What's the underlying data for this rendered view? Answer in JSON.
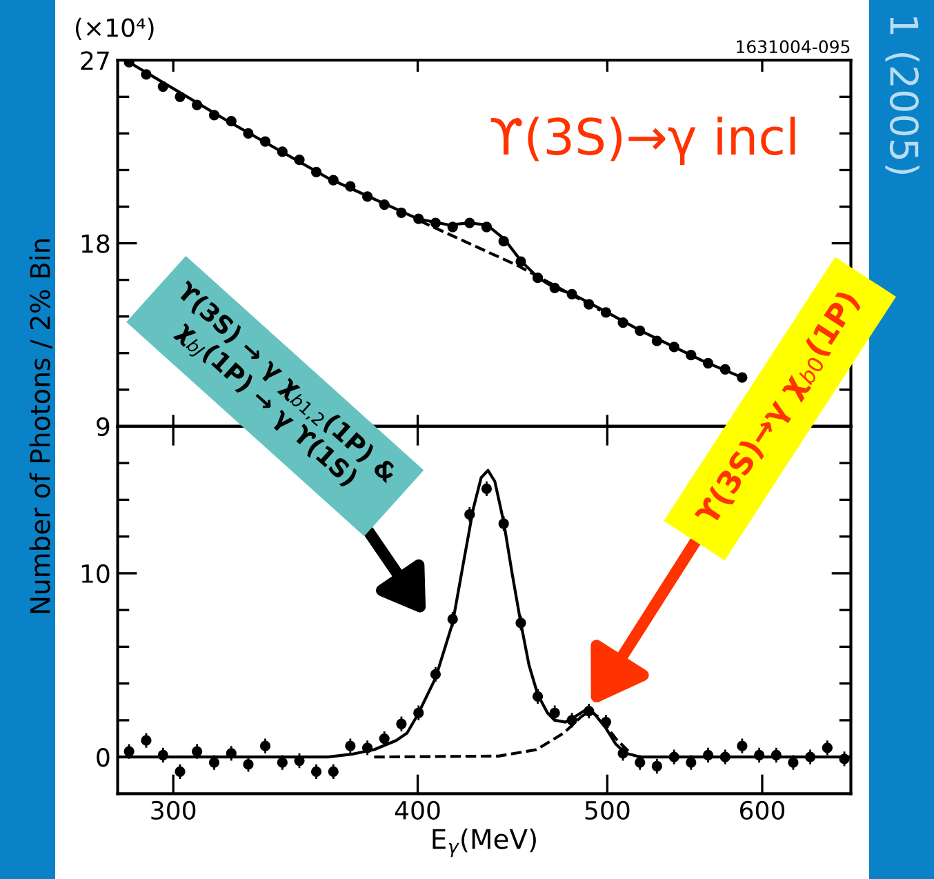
{
  "chart_data": [
    {
      "type": "scatter",
      "ylabel": "Number of Photons / 2% Bin",
      "annotations": [
        "(×10⁴)",
        "1631004-095",
        "ϒ(3S)→γ incl",
        "1 (2005)"
      ],
      "series": [
        {
          "color": "#000000",
          "x": [
            284.8,
            290.6,
            296.4,
            302.4,
            308.5,
            314.8,
            321.2,
            327.7,
            334.3,
            341.1,
            348.0,
            355.0,
            362.2,
            369.5,
            377.0,
            384.6,
            392.4,
            400.4,
            408.5,
            416.8,
            425.2,
            433.8,
            442.6,
            451.6,
            460.7,
            470.0,
            479.6,
            489.3,
            499.2,
            509.3,
            519.6,
            530.1,
            540.9,
            551.8,
            563.0,
            574.4,
            586.0
          ],
          "values": [
            26.9,
            26.3,
            25.7,
            25.2,
            24.8,
            24.3,
            24.0,
            23.4,
            23.0,
            22.5,
            22.1,
            21.5,
            21.1,
            20.8,
            20.3,
            19.9,
            19.5,
            19.2,
            19.0,
            18.8,
            19.0,
            18.8,
            18.1,
            17.1,
            16.3,
            15.8,
            15.5,
            15.0,
            14.6,
            14.1,
            13.7,
            13.2,
            12.9,
            12.5,
            12.1,
            11.8,
            11.4
          ]
        },
        {
          "type": "line",
          "color": "#000000",
          "line_style": "solid",
          "marker": "none",
          "x": [
            284.8,
            320,
            360,
            400,
            415,
            425,
            434,
            443,
            452,
            461,
            470,
            480,
            500,
            520,
            560,
            586
          ],
          "values": [
            26.9,
            24.0,
            21.2,
            19.2,
            18.9,
            19.0,
            18.9,
            18.2,
            17.1,
            16.3,
            15.8,
            15.5,
            14.6,
            13.7,
            12.2,
            11.4
          ]
        },
        {
          "type": "line",
          "color": "#000000",
          "line_style": "dashed",
          "marker": "none",
          "x": [
            401,
            450,
            496
          ],
          "values": [
            19.1,
            16.9,
            14.7
          ]
        }
      ],
      "log": "x",
      "xlim": [
        281,
        666
      ],
      "xticks": [
        {
          "value": 300,
          "label": null
        },
        {
          "value": 400,
          "label": null
        },
        {
          "value": 500,
          "label": null
        },
        {
          "value": 600,
          "label": null
        }
      ],
      "ylim": [
        9,
        27
      ],
      "yticks": [
        9,
        {
          "value": 10.8,
          "label": null
        },
        {
          "value": 12.6,
          "label": null
        },
        {
          "value": 14.4,
          "label": null
        },
        {
          "value": 16.2,
          "label": null
        },
        18,
        {
          "value": 19.8,
          "label": null
        },
        {
          "value": 21.6,
          "label": null
        },
        {
          "value": 23.4,
          "label": null
        },
        {
          "value": 25.2,
          "label": null
        },
        27
      ],
      "tick_labels": "y",
      "marker": "circle"
    },
    {
      "type": "scatter",
      "xlabel": "E$_{γ}$(MeV)",
      "annotations": [
        "ϒ(3S) → γ χ$_{b1,2}$(1P) &\nχ$_{bJ}$(1P) → γ ϒ(1S)",
        {
          "text": "ϒ(3S)→γ χ$_{b0}$(1P)",
          "x": 490.5,
          "y": 2.8
        }
      ],
      "x": [
        284.8,
        290.6,
        296.4,
        302.4,
        308.5,
        314.8,
        321.2,
        327.7,
        334.3,
        341.1,
        348.0,
        355.0,
        362.2,
        369.5,
        377.0,
        384.6,
        392.4,
        400.4,
        408.5,
        416.8,
        425.2,
        433.8,
        442.6,
        451.6,
        460.7,
        470.0,
        479.6,
        489.3,
        499.2,
        509.3,
        519.6,
        530.1,
        540.9,
        551.8,
        563.0,
        574.4,
        586.0,
        597.9,
        610.0,
        622.3,
        634.9,
        647.8,
        660.9
      ],
      "series": [
        {
          "color": "#000000",
          "values": [
            0.3,
            0.9,
            0.1,
            -0.8,
            0.3,
            -0.3,
            0.2,
            -0.4,
            0.6,
            -0.3,
            -0.2,
            -0.8,
            -0.8,
            0.6,
            0.5,
            1.0,
            1.8,
            2.4,
            4.5,
            7.5,
            13.2,
            14.6,
            12.7,
            7.3,
            3.3,
            2.4,
            2.0,
            2.5,
            1.9,
            0.2,
            -0.3,
            -0.5,
            0.0,
            -0.3,
            0.1,
            0.0,
            0.6,
            0.1,
            0.1,
            -0.3,
            0.0,
            0.5,
            -0.1
          ],
          "errors": [
            0.4,
            0.4,
            0.4,
            0.4,
            0.4,
            0.4,
            0.4,
            0.4,
            0.4,
            0.4,
            0.4,
            0.4,
            0.4,
            0.4,
            0.4,
            0.4,
            0.4,
            0.4,
            0.4,
            0.4,
            0.4,
            0.4,
            0.4,
            0.4,
            0.4,
            0.4,
            0.4,
            0.4,
            0.4,
            0.4,
            0.4,
            0.4,
            0.4,
            0.4,
            0.4,
            0.4,
            0.4,
            0.4,
            0.4,
            0.4,
            0.4,
            0.4,
            0.4
          ]
        },
        {
          "type": "line",
          "color": "#000000",
          "line_style": "solid",
          "marker": "none",
          "x": [
            281,
            360,
            370,
            380,
            390,
            395,
            400,
            408.5,
            416.8,
            422,
            427,
            431,
            434.5,
            438,
            442.6,
            447,
            451.6,
            456,
            460.7,
            466,
            470,
            476,
            483,
            488,
            492,
            499,
            505,
            511,
            520,
            666
          ],
          "values": [
            0,
            0,
            0.15,
            0.4,
            0.9,
            1.3,
            2.3,
            4.3,
            7.3,
            10.5,
            13.5,
            15.2,
            15.6,
            15.0,
            12.8,
            10,
            7.3,
            5,
            3.4,
            2.4,
            2.0,
            1.9,
            2.3,
            2.6,
            2.4,
            1.6,
            0.7,
            0.2,
            0,
            0
          ]
        },
        {
          "type": "line",
          "color": "#000000",
          "line_style": "dashed",
          "marker": "none",
          "x": [
            380,
            440,
            460,
            475,
            485,
            490,
            496,
            505,
            515
          ],
          "values": [
            0,
            0.05,
            0.4,
            1.3,
            2.2,
            2.5,
            2.1,
            1.0,
            0.1
          ]
        }
      ],
      "log": "x",
      "xlim": [
        281,
        666
      ],
      "xticks": [
        300,
        400,
        500,
        600
      ],
      "ylim": [
        -2,
        18
      ],
      "yticks": [
        0,
        {
          "value": 2,
          "label": null
        },
        {
          "value": 4,
          "label": null
        },
        {
          "value": 6,
          "label": null
        },
        {
          "value": 8,
          "label": null
        },
        10,
        {
          "value": 12,
          "label": null
        },
        {
          "value": 14,
          "label": null
        },
        {
          "value": 16,
          "label": null
        }
      ],
      "marker": "circle"
    }
  ]
}
